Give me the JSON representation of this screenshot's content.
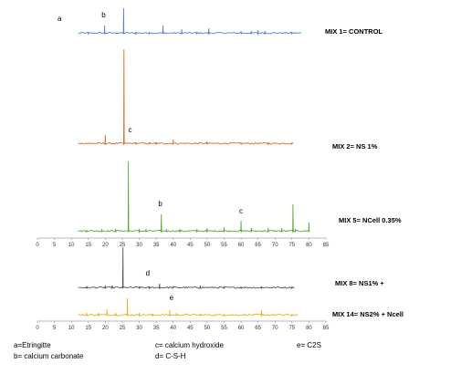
{
  "chart_data": {
    "type": "line",
    "x_range": [
      0,
      85
    ],
    "x_ticks": [
      "0",
      "5",
      "10",
      "15",
      "20",
      "25",
      "30",
      "35",
      "40",
      "45",
      "50",
      "55",
      "60",
      "65",
      "70",
      "75",
      "80",
      "85"
    ],
    "series": [
      {
        "name": "MIX 1= CONTROL",
        "color": "#4a86d8",
        "peaks": [
          [
            6,
            3
          ],
          [
            8,
            2
          ],
          [
            15,
            2
          ],
          [
            19.8,
            9
          ],
          [
            25.4,
            28
          ],
          [
            29,
            2
          ],
          [
            33,
            2
          ],
          [
            37,
            9
          ],
          [
            42.5,
            5
          ],
          [
            47,
            2
          ],
          [
            50.5,
            6
          ],
          [
            60,
            3
          ],
          [
            63,
            3
          ],
          [
            65,
            4
          ],
          [
            67,
            3
          ],
          [
            75,
            2
          ]
        ],
        "annotations": [
          {
            "text": "a",
            "x": 6.5,
            "height": 12
          },
          {
            "text": "b",
            "x": 19.5,
            "height": 16
          }
        ]
      },
      {
        "name": "MIX 2= NS 1%",
        "color": "#e06a28",
        "peaks": [
          [
            5,
            2
          ],
          [
            7,
            2
          ],
          [
            11,
            2
          ],
          [
            20,
            10
          ],
          [
            25.5,
            104
          ],
          [
            29,
            2
          ],
          [
            33,
            2
          ],
          [
            35,
            2
          ],
          [
            40,
            5
          ],
          [
            50,
            3
          ],
          [
            60,
            2
          ],
          [
            68,
            2
          ],
          [
            75,
            2
          ]
        ],
        "annotations": [
          {
            "text": "c",
            "x": 27.3,
            "height": 11
          }
        ]
      },
      {
        "name": "MIX 5= NCell 0.35%",
        "color": "#5fa83a",
        "peaks": [
          [
            7,
            2
          ],
          [
            11,
            2
          ],
          [
            14.5,
            2
          ],
          [
            19,
            3
          ],
          [
            23,
            3
          ],
          [
            26.8,
            77
          ],
          [
            30,
            3
          ],
          [
            32,
            3
          ],
          [
            36.5,
            19
          ],
          [
            38,
            3
          ],
          [
            42,
            3
          ],
          [
            47,
            3
          ],
          [
            50,
            4
          ],
          [
            55,
            5
          ],
          [
            60,
            12
          ],
          [
            63,
            4
          ],
          [
            68,
            4
          ],
          [
            72,
            4
          ],
          [
            75.3,
            30
          ],
          [
            76,
            3
          ],
          [
            80,
            10
          ]
        ],
        "annotations": [
          {
            "text": "b",
            "x": 36.2,
            "height": 26
          },
          {
            "text": "c",
            "x": 60,
            "height": 18
          }
        ]
      },
      {
        "name": "MIX 8= NS1% +",
        "color": "#555555",
        "peaks": [
          [
            7,
            2
          ],
          [
            14.5,
            2
          ],
          [
            20,
            3
          ],
          [
            22,
            3
          ],
          [
            25.2,
            45
          ],
          [
            30,
            2
          ],
          [
            33,
            2
          ],
          [
            36,
            5
          ],
          [
            40,
            2
          ],
          [
            48,
            3
          ],
          [
            55,
            2
          ],
          [
            60,
            2
          ],
          [
            66,
            2
          ],
          [
            75,
            2
          ]
        ],
        "annotations": [
          {
            "text": "d",
            "x": 32.5,
            "height": 12
          }
        ]
      },
      {
        "name": "MIX 14= NS2% + Ncell",
        "color": "#e8b124",
        "peaks": [
          [
            6,
            3
          ],
          [
            9,
            2
          ],
          [
            14.5,
            3
          ],
          [
            18,
            3
          ],
          [
            20.5,
            7
          ],
          [
            23,
            3
          ],
          [
            26.5,
            19
          ],
          [
            30,
            3
          ],
          [
            34,
            2
          ],
          [
            39,
            6
          ],
          [
            41,
            3
          ],
          [
            48,
            2
          ],
          [
            55,
            2
          ],
          [
            66,
            6
          ],
          [
            75,
            2
          ]
        ],
        "annotations": [
          {
            "text": "e",
            "x": 39.5,
            "height": 15
          }
        ]
      }
    ],
    "legend_items": [
      "a=Etringitte",
      "b= calcium carbonate",
      "c= calcium hydroxide",
      "d= C-S-H",
      "e= C2S"
    ]
  }
}
